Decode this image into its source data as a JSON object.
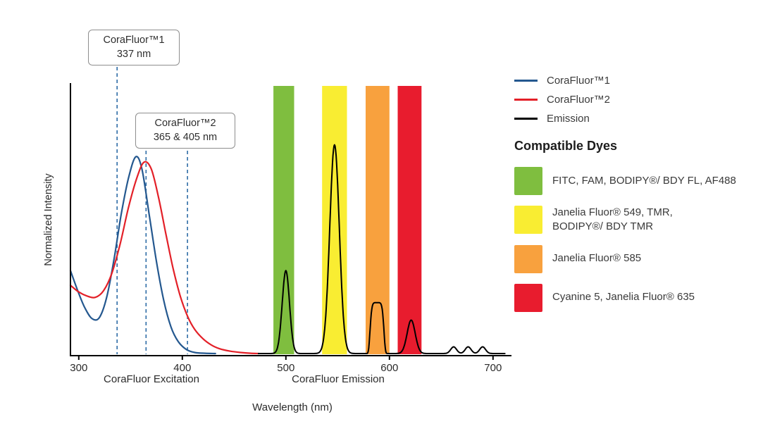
{
  "colors": {
    "corafluor1": "#24588f",
    "corafluor2": "#e32028",
    "emission": "#000000",
    "band_green": "#7fbe3f",
    "band_yellow": "#f9ed32",
    "band_orange": "#f8a13e",
    "band_red": "#e81c2e",
    "marker_line": "#2e6ca6",
    "axis": "#000000",
    "tick_text": "#2b2b2b"
  },
  "callouts": [
    {
      "line1": "CoraFluor™1",
      "line2": "337 nm",
      "wavelengths": [
        337
      ]
    },
    {
      "line1": "CoraFluor™2",
      "line2": "365 & 405 nm",
      "wavelengths": [
        365,
        405
      ]
    }
  ],
  "legend": {
    "items": [
      {
        "label": "CoraFluor™1",
        "color_key": "corafluor1"
      },
      {
        "label": "CoraFluor™2",
        "color_key": "corafluor2"
      },
      {
        "label": "Emission",
        "color_key": "emission"
      }
    ],
    "dyes_heading": "Compatible Dyes",
    "dyes": [
      {
        "label": "FITC, FAM, BODIPY®/ BDY FL, AF488",
        "color_key": "band_green"
      },
      {
        "label": "Janelia Fluor® 549, TMR,\nBODIPY®/ BDY TMR",
        "color_key": "band_yellow"
      },
      {
        "label": "Janelia Fluor® 585",
        "color_key": "band_orange"
      },
      {
        "label": "Cyanine 5, Janelia Fluor® 635",
        "color_key": "band_red"
      }
    ]
  },
  "chart_data": {
    "type": "line",
    "xlabel": "Wavelength (nm)",
    "ylabel": "Normalized Intensity",
    "x_ticks": [
      300,
      400,
      500,
      600,
      700
    ],
    "x_range": [
      292,
      718
    ],
    "y_range": [
      0,
      1
    ],
    "grid": false,
    "legend_position": "right",
    "axis_section_labels": [
      {
        "label": "CoraFluor Excitation"
      },
      {
        "label": "CoraFluor Emission"
      }
    ],
    "excitation_markers_nm": [
      337,
      365,
      405
    ],
    "bands": [
      {
        "name": "green",
        "range": [
          488,
          508
        ],
        "color_key": "band_green"
      },
      {
        "name": "yellow",
        "range": [
          535,
          559
        ],
        "color_key": "band_yellow"
      },
      {
        "name": "orange",
        "range": [
          577,
          600
        ],
        "color_key": "band_orange"
      },
      {
        "name": "red",
        "range": [
          608,
          631
        ],
        "color_key": "band_red"
      }
    ],
    "series": [
      {
        "name": "CoraFluor™1 excitation",
        "color_key": "corafluor1",
        "points": [
          [
            292,
            0.31
          ],
          [
            299,
            0.235
          ],
          [
            306,
            0.17
          ],
          [
            313,
            0.13
          ],
          [
            320,
            0.135
          ],
          [
            327,
            0.21
          ],
          [
            334,
            0.35
          ],
          [
            341,
            0.52
          ],
          [
            348,
            0.655
          ],
          [
            355,
            0.735
          ],
          [
            361,
            0.69
          ],
          [
            368,
            0.52
          ],
          [
            375,
            0.345
          ],
          [
            382,
            0.2
          ],
          [
            389,
            0.1
          ],
          [
            396,
            0.045
          ],
          [
            404,
            0.015
          ],
          [
            412,
            0.004
          ],
          [
            422,
            0.001
          ],
          [
            432,
            0
          ]
        ]
      },
      {
        "name": "CoraFluor™2 excitation",
        "color_key": "corafluor2",
        "points": [
          [
            292,
            0.255
          ],
          [
            300,
            0.23
          ],
          [
            308,
            0.215
          ],
          [
            316,
            0.21
          ],
          [
            324,
            0.235
          ],
          [
            332,
            0.3
          ],
          [
            340,
            0.41
          ],
          [
            348,
            0.545
          ],
          [
            356,
            0.655
          ],
          [
            363,
            0.715
          ],
          [
            370,
            0.69
          ],
          [
            377,
            0.585
          ],
          [
            384,
            0.45
          ],
          [
            391,
            0.32
          ],
          [
            398,
            0.215
          ],
          [
            405,
            0.14
          ],
          [
            412,
            0.09
          ],
          [
            420,
            0.055
          ],
          [
            428,
            0.032
          ],
          [
            436,
            0.018
          ],
          [
            446,
            0.009
          ],
          [
            456,
            0.004
          ],
          [
            466,
            0.001
          ],
          [
            474,
            0
          ]
        ]
      },
      {
        "name": "Emission",
        "color_key": "emission",
        "baseline_range": [
          473,
          712
        ],
        "peaks": [
          {
            "center": 500,
            "height": 0.31,
            "width": 5,
            "shape": "gaussian"
          },
          {
            "center": 547,
            "height": 0.78,
            "width": 6.5,
            "shape": "gaussian"
          },
          {
            "center": 588,
            "height": 0.19,
            "width": 7,
            "shape": "flattop"
          },
          {
            "center": 621,
            "height": 0.125,
            "width": 5.5,
            "shape": "gaussian"
          },
          {
            "center": 662,
            "height": 0.025,
            "width": 4,
            "shape": "gaussian"
          },
          {
            "center": 676,
            "height": 0.025,
            "width": 4,
            "shape": "gaussian"
          },
          {
            "center": 690,
            "height": 0.025,
            "width": 4,
            "shape": "gaussian"
          }
        ]
      }
    ]
  }
}
